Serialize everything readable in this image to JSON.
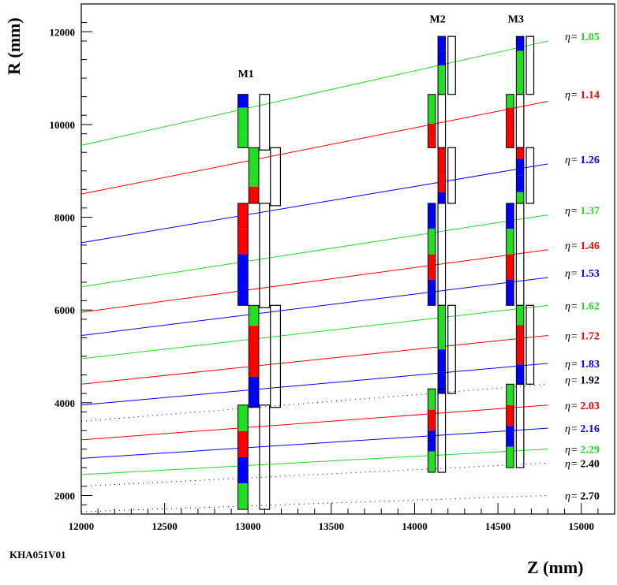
{
  "figure": {
    "code_label": "KHA051V01",
    "xlabel": "Z (mm)",
    "ylabel": "R (mm)",
    "xlim": [
      12000,
      15200
    ],
    "ylim": [
      1600,
      12600
    ],
    "x_ticks": [
      "12000",
      "12500",
      "13000",
      "13500",
      "14000",
      "14500",
      "15000"
    ],
    "y_ticks": [
      "2000",
      "4000",
      "6000",
      "8000",
      "10000",
      "12000"
    ],
    "colors": {
      "green": "#22dd22",
      "red": "#ff0000",
      "blue": "#0000ff",
      "black": "#000000"
    }
  },
  "modules": [
    {
      "label": "M1",
      "label_pos": [
        12940,
        11020
      ],
      "segments": [
        {
          "z": 12940,
          "w": 60,
          "r1": 9500,
          "r2": 10650,
          "colors": [
            "blue",
            "green",
            "green",
            "green"
          ],
          "fractions": [
            0.25,
            0.25,
            0.25,
            0.25
          ]
        },
        {
          "z": 13005,
          "w": 60,
          "r1": 8300,
          "r2": 9500,
          "colors": [
            "green",
            "green",
            "green",
            "red"
          ],
          "fractions": [
            0.3,
            0.3,
            0.1,
            0.3
          ]
        },
        {
          "z": 12940,
          "w": 60,
          "r1": 6100,
          "r2": 8300,
          "colors": [
            "red",
            "red",
            "blue",
            "blue"
          ],
          "fractions": [
            0.25,
            0.25,
            0.25,
            0.25
          ]
        },
        {
          "z": 13005,
          "w": 60,
          "r1": 3900,
          "r2": 6100,
          "colors": [
            "green",
            "red",
            "red",
            "blue"
          ],
          "fractions": [
            0.2,
            0.25,
            0.25,
            0.3
          ]
        },
        {
          "z": 12940,
          "w": 60,
          "r1": 1700,
          "r2": 3950,
          "colors": [
            "green",
            "red",
            "blue",
            "green"
          ],
          "fractions": [
            0.25,
            0.25,
            0.25,
            0.25
          ]
        }
      ],
      "outline_segments": [
        {
          "z": 13070,
          "w": 60,
          "r1": 9450,
          "r2": 10650
        },
        {
          "z": 13135,
          "w": 60,
          "r1": 8250,
          "r2": 9500
        },
        {
          "z": 13070,
          "w": 60,
          "r1": 6050,
          "r2": 8300
        },
        {
          "z": 13135,
          "w": 60,
          "r1": 3900,
          "r2": 6100
        },
        {
          "z": 13070,
          "w": 60,
          "r1": 1700,
          "r2": 3950
        }
      ]
    },
    {
      "label": "M2",
      "label_pos": [
        14090,
        12200
      ],
      "segments": [
        {
          "z": 14140,
          "w": 45,
          "r1": 10650,
          "r2": 11900,
          "colors": [
            "blue",
            "blue",
            "green",
            "green"
          ],
          "fractions": [
            0.25,
            0.25,
            0.25,
            0.25
          ]
        },
        {
          "z": 14080,
          "w": 45,
          "r1": 9500,
          "r2": 10650,
          "colors": [
            "green",
            "green",
            "red",
            "red"
          ],
          "fractions": [
            0.25,
            0.3,
            0.25,
            0.2
          ]
        },
        {
          "z": 14140,
          "w": 45,
          "r1": 8300,
          "r2": 9500,
          "colors": [
            "red",
            "red",
            "red",
            "blue"
          ],
          "fractions": [
            0.2,
            0.3,
            0.3,
            0.2
          ]
        },
        {
          "z": 14080,
          "w": 45,
          "r1": 6100,
          "r2": 8300,
          "colors": [
            "blue",
            "green",
            "red",
            "blue"
          ],
          "fractions": [
            0.25,
            0.25,
            0.25,
            0.25
          ]
        },
        {
          "z": 14140,
          "w": 45,
          "r1": 4200,
          "r2": 6100,
          "colors": [
            "green",
            "green",
            "blue",
            "blue"
          ],
          "fractions": [
            0.1,
            0.4,
            0.25,
            0.25
          ]
        },
        {
          "z": 14080,
          "w": 45,
          "r1": 2500,
          "r2": 4300,
          "colors": [
            "green",
            "red",
            "blue",
            "green"
          ],
          "fractions": [
            0.25,
            0.25,
            0.25,
            0.25
          ]
        }
      ],
      "outline_segments": [
        {
          "z": 14200,
          "w": 45,
          "r1": 10650,
          "r2": 11900
        },
        {
          "z": 14140,
          "w": 45,
          "r1": 9500,
          "r2": 10650
        },
        {
          "z": 14200,
          "w": 45,
          "r1": 8300,
          "r2": 9500
        },
        {
          "z": 14140,
          "w": 45,
          "r1": 6100,
          "r2": 8300
        },
        {
          "z": 14200,
          "w": 45,
          "r1": 4200,
          "r2": 6100
        },
        {
          "z": 14140,
          "w": 45,
          "r1": 2500,
          "r2": 4300
        }
      ]
    },
    {
      "label": "M3",
      "label_pos": [
        14560,
        12200
      ],
      "segments": [
        {
          "z": 14610,
          "w": 45,
          "r1": 10650,
          "r2": 11900,
          "colors": [
            "blue",
            "green",
            "green",
            "green"
          ],
          "fractions": [
            0.25,
            0.25,
            0.25,
            0.25
          ]
        },
        {
          "z": 14550,
          "w": 45,
          "r1": 9500,
          "r2": 10650,
          "colors": [
            "green",
            "red",
            "red",
            "red"
          ],
          "fractions": [
            0.25,
            0.25,
            0.25,
            0.25
          ]
        },
        {
          "z": 14610,
          "w": 45,
          "r1": 8300,
          "r2": 9500,
          "colors": [
            "red",
            "blue",
            "blue",
            "green"
          ],
          "fractions": [
            0.2,
            0.3,
            0.3,
            0.2
          ]
        },
        {
          "z": 14550,
          "w": 45,
          "r1": 6100,
          "r2": 8300,
          "colors": [
            "blue",
            "green",
            "red",
            "blue"
          ],
          "fractions": [
            0.25,
            0.25,
            0.25,
            0.25
          ]
        },
        {
          "z": 14610,
          "w": 45,
          "r1": 4400,
          "r2": 6100,
          "colors": [
            "green",
            "red",
            "red",
            "blue"
          ],
          "fractions": [
            0.25,
            0.25,
            0.25,
            0.25
          ]
        },
        {
          "z": 14550,
          "w": 45,
          "r1": 2600,
          "r2": 4400,
          "colors": [
            "green",
            "red",
            "blue",
            "green"
          ],
          "fractions": [
            0.25,
            0.25,
            0.25,
            0.25
          ]
        }
      ],
      "outline_segments": [
        {
          "z": 14670,
          "w": 45,
          "r1": 10650,
          "r2": 11900
        },
        {
          "z": 14610,
          "w": 45,
          "r1": 9500,
          "r2": 10650
        },
        {
          "z": 14670,
          "w": 45,
          "r1": 8300,
          "r2": 9500
        },
        {
          "z": 14610,
          "w": 45,
          "r1": 6100,
          "r2": 8300
        },
        {
          "z": 14670,
          "w": 45,
          "r1": 4400,
          "r2": 6100
        },
        {
          "z": 14610,
          "w": 45,
          "r1": 2600,
          "r2": 4400
        }
      ]
    }
  ],
  "eta_lines": [
    {
      "value": "1.05",
      "color": "green",
      "style": "solid",
      "r_start": 9550,
      "r_end": 11800
    },
    {
      "value": "1.14",
      "color": "red",
      "style": "solid",
      "r_start": 8500,
      "r_end": 10500
    },
    {
      "value": "1.26",
      "color": "blue",
      "style": "solid",
      "r_start": 7450,
      "r_end": 9150
    },
    {
      "value": "1.37",
      "color": "green",
      "style": "solid",
      "r_start": 6500,
      "r_end": 8050
    },
    {
      "value": "1.46",
      "color": "red",
      "style": "solid",
      "r_start": 5950,
      "r_end": 7300
    },
    {
      "value": "1.53",
      "color": "blue",
      "style": "solid",
      "r_start": 5450,
      "r_end": 6700
    },
    {
      "value": "1.62",
      "color": "green",
      "style": "solid",
      "r_start": 4950,
      "r_end": 6100
    },
    {
      "value": "1.72",
      "color": "red",
      "style": "solid",
      "r_start": 4400,
      "r_end": 5450
    },
    {
      "value": "1.83",
      "color": "blue",
      "style": "solid",
      "r_start": 3950,
      "r_end": 4850
    },
    {
      "value": "1.92",
      "color": "black",
      "style": "dotted",
      "r_start": 3600,
      "r_end": 4400
    },
    {
      "value": "2.03",
      "color": "red",
      "style": "solid",
      "r_start": 3200,
      "r_end": 3950
    },
    {
      "value": "2.16",
      "color": "blue",
      "style": "solid",
      "r_start": 2800,
      "r_end": 3450
    },
    {
      "value": "2.29",
      "color": "green",
      "style": "solid",
      "r_start": 2450,
      "r_end": 3000
    },
    {
      "value": "2.40",
      "color": "black",
      "style": "dotted",
      "r_start": 2200,
      "r_end": 2700
    },
    {
      "value": "2.70",
      "color": "black",
      "style": "dotted",
      "r_start": 1650,
      "r_end": 2000
    }
  ],
  "eta_label_r": [
    11900,
    10650,
    9250,
    8150,
    7400,
    6800,
    6100,
    5450,
    4850,
    4500,
    3950,
    3450,
    3000,
    2700,
    2000
  ],
  "eta_symbol": "η="
}
